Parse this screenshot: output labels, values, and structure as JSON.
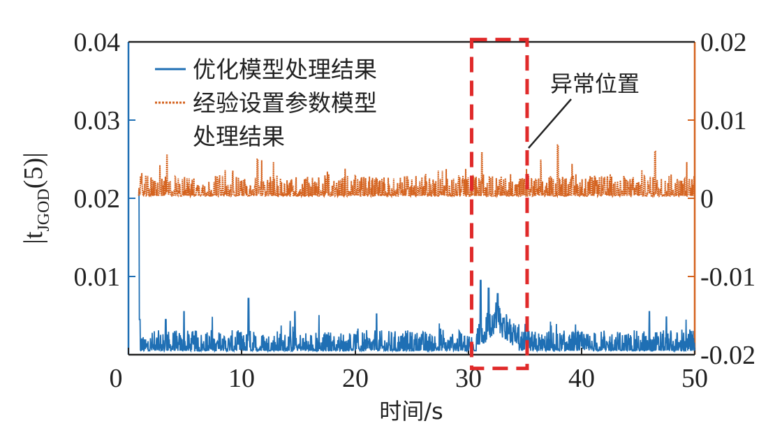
{
  "chart_data": {
    "type": "line",
    "xlabel": "时间/s",
    "ylabel_left_main": "|t",
    "ylabel_left_sub": "JGOD",
    "ylabel_left_tail": "(5)|",
    "ylabel_right": "",
    "xlim": [
      0,
      50
    ],
    "ylim_left": [
      0,
      0.04
    ],
    "ylim_right": [
      -0.02,
      0.02
    ],
    "xticks": [
      "0",
      "10",
      "20",
      "30",
      "40",
      "50"
    ],
    "yticks_left": [
      "0.01",
      "0.02",
      "0.03",
      "0.04"
    ],
    "yticks_right": [
      "-0.02",
      "-0.01",
      "0",
      "0.01",
      "0.02"
    ],
    "grid": false,
    "legend_position": "top-left",
    "series": [
      {
        "name": "优化模型处理结果",
        "axis": "left",
        "color": "#1f6fb4",
        "style": "solid",
        "baseline": 0.0005,
        "noise": 0.0012,
        "spikes": [
          {
            "x": 0.9,
            "y": 0.021
          },
          {
            "x": 1.0,
            "y": 0.0045
          },
          {
            "x": 3.3,
            "y": 0.0045
          },
          {
            "x": 4.9,
            "y": 0.0055
          },
          {
            "x": 10.6,
            "y": 0.0072
          },
          {
            "x": 14.7,
            "y": 0.0055
          },
          {
            "x": 21.9,
            "y": 0.0052
          },
          {
            "x": 31.1,
            "y": 0.0095
          },
          {
            "x": 31.8,
            "y": 0.0085
          },
          {
            "x": 32.6,
            "y": 0.0078
          },
          {
            "x": 46.0,
            "y": 0.0055
          },
          {
            "x": 47.5,
            "y": 0.0048
          }
        ],
        "anomaly_segment": {
          "x_start": 30.7,
          "x_end": 34.5,
          "level": 0.0035
        }
      },
      {
        "name": "经验设置参数模型处理结果",
        "axis": "right",
        "color": "#d4621e",
        "style": "dotted",
        "baseline": 0.0003,
        "noise": 0.0012,
        "spikes": [
          {
            "x": 0.8,
            "y": 0.011
          },
          {
            "x": 3.4,
            "y": 0.0055
          },
          {
            "x": 11.4,
            "y": 0.005
          },
          {
            "x": 31.2,
            "y": 0.0058
          },
          {
            "x": 37.9,
            "y": 0.0068
          },
          {
            "x": 46.5,
            "y": 0.006
          }
        ]
      }
    ],
    "highlight_box": {
      "x_start": 30.3,
      "x_end": 35.2,
      "y_bottom": -0.0005,
      "y_top": 0.0403
    },
    "annotation": {
      "text": "异常位置",
      "arrow_to": {
        "x": 35.2,
        "y": 0.026
      }
    }
  },
  "legend": {
    "line1": "优化模型处理结果",
    "line2a": "经验设置参数模型",
    "line2b": "处理结果"
  }
}
